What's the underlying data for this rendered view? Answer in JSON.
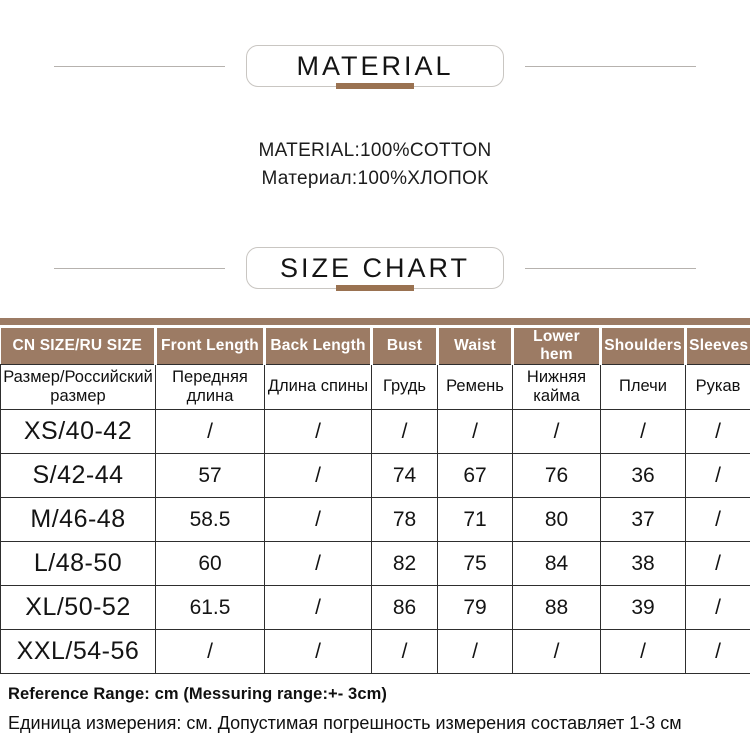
{
  "colors": {
    "header_bg": "#9c7b64",
    "accent_bar": "#9a7251"
  },
  "material_section": {
    "title": "MATERIAL",
    "line_en": "MATERIAL:100%COTTON",
    "line_ru": "Материал:100%ХЛОПОК"
  },
  "size_chart_section": {
    "title": "SIZE CHART"
  },
  "size_table": {
    "header_en": [
      "CN SIZE/RU SIZE",
      "Front Length",
      "Back Length",
      "Bust",
      "Waist",
      "Lower hem",
      "Shoulders",
      "Sleeves"
    ],
    "header_ru": [
      "Размер/Российский размер",
      "Передняя длина",
      "Длина спины",
      "Грудь",
      "Ремень",
      "Нижняя кайма",
      "Плечи",
      "Рукав"
    ],
    "rows": [
      {
        "size": "XS/40-42",
        "values": [
          "/",
          "/",
          "/",
          "/",
          "/",
          "/",
          "/"
        ]
      },
      {
        "size": "S/42-44",
        "values": [
          "57",
          "/",
          "74",
          "67",
          "76",
          "36",
          "/"
        ]
      },
      {
        "size": "M/46-48",
        "values": [
          "58.5",
          "/",
          "78",
          "71",
          "80",
          "37",
          "/"
        ]
      },
      {
        "size": "L/48-50",
        "values": [
          "60",
          "/",
          "82",
          "75",
          "84",
          "38",
          "/"
        ]
      },
      {
        "size": "XL/50-52",
        "values": [
          "61.5",
          "/",
          "86",
          "79",
          "88",
          "39",
          "/"
        ]
      },
      {
        "size": "XXL/54-56",
        "values": [
          "/",
          "/",
          "/",
          "/",
          "/",
          "/",
          "/"
        ]
      }
    ]
  },
  "notes": {
    "en": "Reference Range: cm (Messuring range:+- 3cm)",
    "ru": "Единица измерения: см. Допустимая погрешность измерения составляет 1-3 см"
  }
}
